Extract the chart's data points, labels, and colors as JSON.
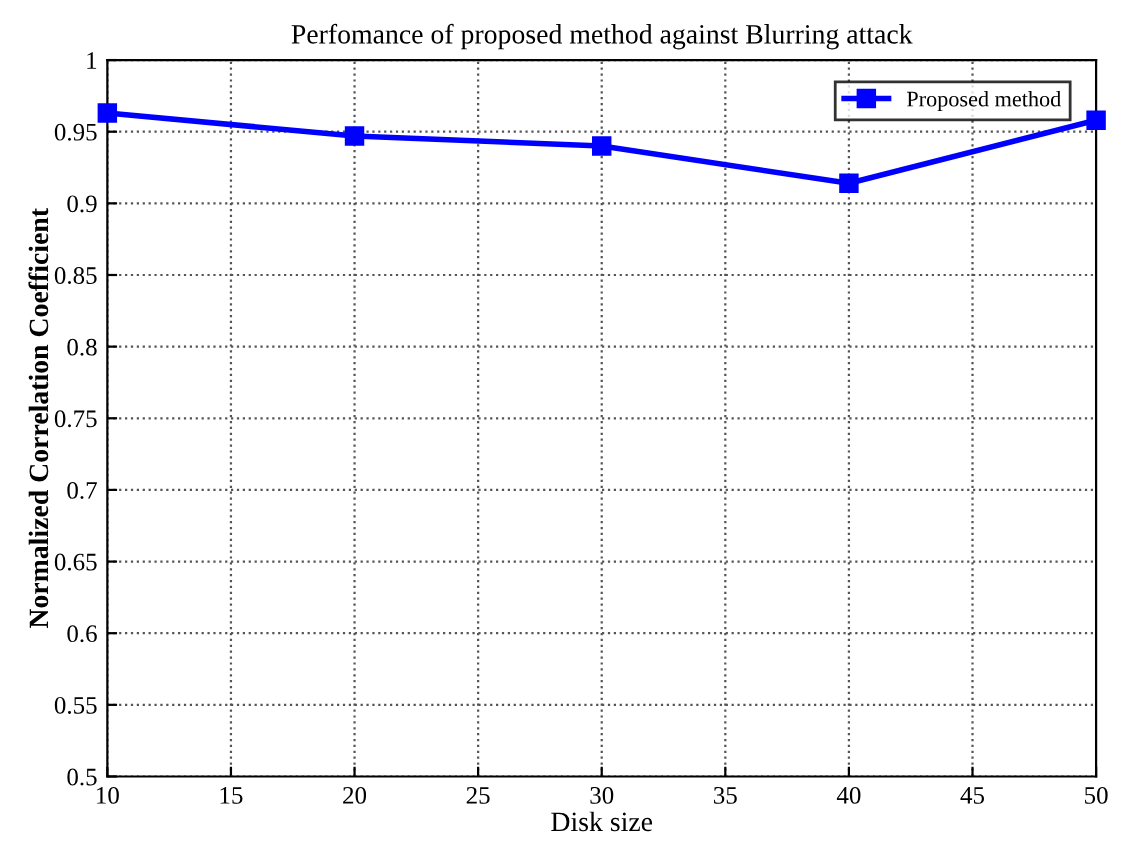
{
  "chart_data": {
    "type": "line",
    "title": "Perfomance of proposed method against Blurring attack",
    "xlabel": "Disk size",
    "ylabel": "Normalized Correlation Coefficient",
    "x": [
      10,
      20,
      30,
      40,
      50
    ],
    "series": [
      {
        "name": "Proposed method",
        "color": "#0000ff",
        "values": [
          0.963,
          0.947,
          0.94,
          0.914,
          0.958
        ]
      }
    ],
    "xlim": [
      10,
      50
    ],
    "ylim": [
      0.5,
      1
    ],
    "xticks": [
      10,
      15,
      20,
      25,
      30,
      35,
      40,
      45,
      50
    ],
    "yticks": [
      0.5,
      0.55,
      0.6,
      0.65,
      0.7,
      0.75,
      0.8,
      0.85,
      0.9,
      0.95,
      1
    ],
    "grid": true,
    "legend": "top right",
    "marker": "square",
    "line_style": "solid"
  }
}
